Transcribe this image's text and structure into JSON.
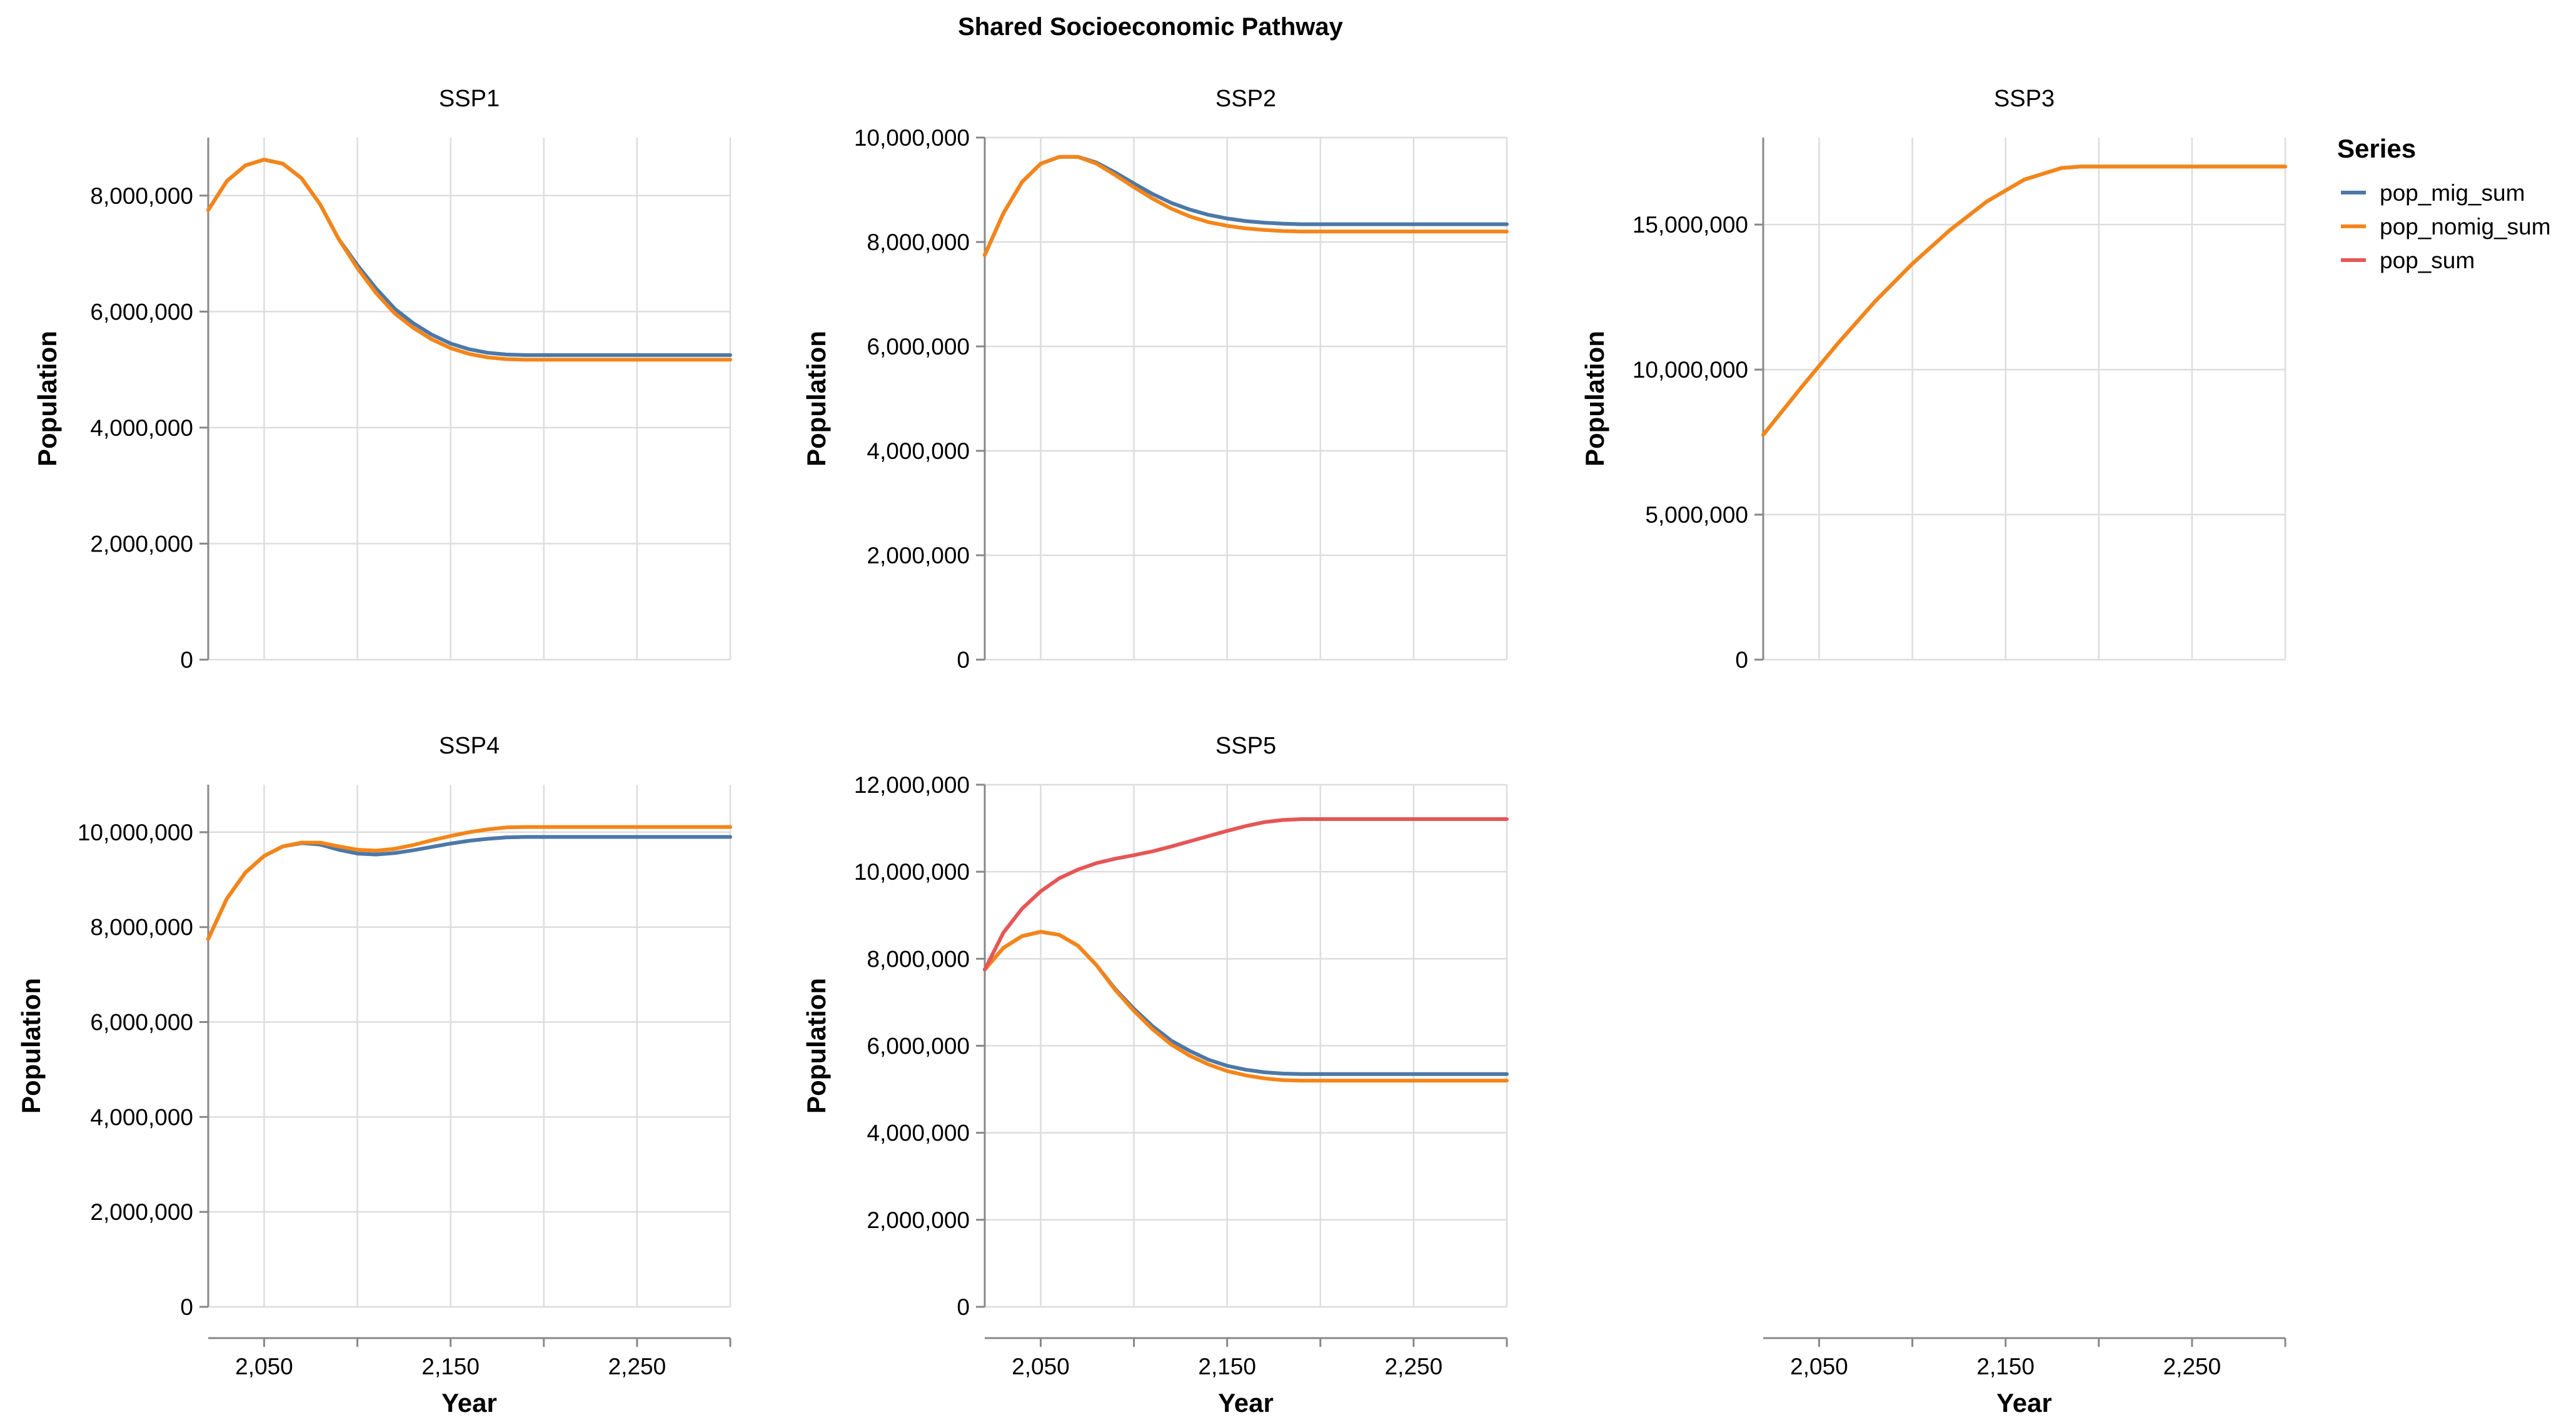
{
  "chart_data": {
    "type": "line",
    "title": "Shared Socioeconomic Pathway",
    "legend": {
      "title": "Series",
      "placement": "right",
      "items": [
        {
          "name": "pop_mig_sum",
          "color": "#4c78a8"
        },
        {
          "name": "pop_nomig_sum",
          "color": "#f58518"
        },
        {
          "name": "pop_sum",
          "color": "#e45756"
        }
      ]
    },
    "xlabel": "Year",
    "ylabel": "Population",
    "xlim": [
      2020,
      2300
    ],
    "xticks": [
      2050,
      2150,
      2250
    ],
    "xtick_labels": [
      "2,050",
      "2,150",
      "2,250"
    ],
    "grid": true,
    "panels": [
      {
        "title": "SSP1",
        "ylim": [
          0,
          9000000
        ],
        "yticks": [
          0,
          2000000,
          4000000,
          6000000,
          8000000
        ],
        "ytick_labels": [
          "0",
          "2,000,000",
          "4,000,000",
          "6,000,000",
          "8,000,000"
        ],
        "series": [
          {
            "name": "pop_mig_sum",
            "x": [
              2020,
              2030,
              2040,
              2050,
              2060,
              2070,
              2080,
              2090,
              2100,
              2110,
              2120,
              2130,
              2140,
              2150,
              2160,
              2170,
              2180,
              2190,
              2200,
              2250,
              2300
            ],
            "values": [
              7750000,
              8250000,
              8520000,
              8620000,
              8550000,
              8300000,
              7850000,
              7250000,
              6800000,
              6400000,
              6050000,
              5800000,
              5600000,
              5450000,
              5350000,
              5290000,
              5260000,
              5250000,
              5250000,
              5250000,
              5250000
            ]
          },
          {
            "name": "pop_nomig_sum",
            "x": [
              2020,
              2030,
              2040,
              2050,
              2060,
              2070,
              2080,
              2090,
              2100,
              2110,
              2120,
              2130,
              2140,
              2150,
              2160,
              2170,
              2180,
              2190,
              2200,
              2250,
              2300
            ],
            "values": [
              7750000,
              8250000,
              8520000,
              8620000,
              8550000,
              8300000,
              7850000,
              7250000,
              6750000,
              6320000,
              5970000,
              5720000,
              5520000,
              5370000,
              5270000,
              5210000,
              5180000,
              5170000,
              5170000,
              5170000,
              5170000
            ]
          }
        ]
      },
      {
        "title": "SSP2",
        "ylim": [
          0,
          10000000
        ],
        "yticks": [
          0,
          2000000,
          4000000,
          6000000,
          8000000,
          10000000
        ],
        "ytick_labels": [
          "0",
          "2,000,000",
          "4,000,000",
          "6,000,000",
          "8,000,000",
          "10,000,000"
        ],
        "series": [
          {
            "name": "pop_mig_sum",
            "x": [
              2020,
              2030,
              2040,
              2050,
              2060,
              2070,
              2080,
              2090,
              2100,
              2110,
              2120,
              2130,
              2140,
              2150,
              2160,
              2170,
              2180,
              2190,
              2200,
              2250,
              2300
            ],
            "values": [
              7750000,
              8550000,
              9150000,
              9500000,
              9630000,
              9630000,
              9520000,
              9330000,
              9120000,
              8920000,
              8750000,
              8620000,
              8520000,
              8450000,
              8400000,
              8370000,
              8350000,
              8340000,
              8340000,
              8340000,
              8340000
            ]
          },
          {
            "name": "pop_nomig_sum",
            "x": [
              2020,
              2030,
              2040,
              2050,
              2060,
              2070,
              2080,
              2090,
              2100,
              2110,
              2120,
              2130,
              2140,
              2150,
              2160,
              2170,
              2180,
              2190,
              2200,
              2250,
              2300
            ],
            "values": [
              7750000,
              8550000,
              9150000,
              9500000,
              9630000,
              9630000,
              9500000,
              9280000,
              9050000,
              8830000,
              8640000,
              8490000,
              8380000,
              8310000,
              8260000,
              8230000,
              8210000,
              8200000,
              8200000,
              8200000,
              8200000
            ]
          }
        ]
      },
      {
        "title": "SSP3",
        "ylim": [
          0,
          18000000
        ],
        "yticks": [
          0,
          5000000,
          10000000,
          15000000
        ],
        "ytick_labels": [
          "0",
          "5,000,000",
          "10,000,000",
          "15,000,000"
        ],
        "series": [
          {
            "name": "pop_mig_sum",
            "x": [
              2020,
              2040,
              2060,
              2080,
              2100,
              2120,
              2140,
              2160,
              2180,
              2190,
              2200,
              2250,
              2300
            ],
            "values": [
              7750000,
              9350000,
              10900000,
              12350000,
              13650000,
              14800000,
              15800000,
              16550000,
              16950000,
              17000000,
              17000000,
              17000000,
              17000000
            ]
          },
          {
            "name": "pop_nomig_sum",
            "x": [
              2020,
              2040,
              2060,
              2080,
              2100,
              2120,
              2140,
              2160,
              2180,
              2190,
              2200,
              2250,
              2300
            ],
            "values": [
              7750000,
              9350000,
              10900000,
              12350000,
              13650000,
              14800000,
              15800000,
              16550000,
              16950000,
              17000000,
              17000000,
              17000000,
              17000000
            ]
          }
        ]
      },
      {
        "title": "SSP4",
        "ylim": [
          0,
          11000000
        ],
        "yticks": [
          0,
          2000000,
          4000000,
          6000000,
          8000000,
          10000000
        ],
        "ytick_labels": [
          "0",
          "2,000,000",
          "4,000,000",
          "6,000,000",
          "8,000,000",
          "10,000,000"
        ],
        "series": [
          {
            "name": "pop_mig_sum",
            "x": [
              2020,
              2030,
              2040,
              2050,
              2060,
              2070,
              2080,
              2090,
              2100,
              2110,
              2120,
              2130,
              2140,
              2150,
              2160,
              2170,
              2180,
              2190,
              2200,
              2250,
              2300
            ],
            "values": [
              7750000,
              8600000,
              9150000,
              9500000,
              9700000,
              9770000,
              9740000,
              9630000,
              9550000,
              9530000,
              9560000,
              9620000,
              9690000,
              9760000,
              9820000,
              9860000,
              9890000,
              9900000,
              9900000,
              9900000,
              9900000
            ]
          },
          {
            "name": "pop_nomig_sum",
            "x": [
              2020,
              2030,
              2040,
              2050,
              2060,
              2070,
              2080,
              2090,
              2100,
              2110,
              2120,
              2130,
              2140,
              2150,
              2160,
              2170,
              2180,
              2190,
              2200,
              2250,
              2300
            ],
            "values": [
              7750000,
              8600000,
              9150000,
              9500000,
              9700000,
              9780000,
              9780000,
              9700000,
              9630000,
              9610000,
              9650000,
              9730000,
              9830000,
              9920000,
              10000000,
              10060000,
              10100000,
              10110000,
              10110000,
              10110000,
              10110000
            ]
          }
        ]
      },
      {
        "title": "SSP5",
        "ylim": [
          0,
          12000000
        ],
        "yticks": [
          0,
          2000000,
          4000000,
          6000000,
          8000000,
          10000000,
          12000000
        ],
        "ytick_labels": [
          "0",
          "2,000,000",
          "4,000,000",
          "6,000,000",
          "8,000,000",
          "10,000,000",
          "12,000,000"
        ],
        "series": [
          {
            "name": "pop_mig_sum",
            "x": [
              2020,
              2030,
              2040,
              2050,
              2060,
              2070,
              2080,
              2090,
              2100,
              2110,
              2120,
              2130,
              2140,
              2150,
              2160,
              2170,
              2180,
              2190,
              2200,
              2250,
              2300
            ],
            "values": [
              7750000,
              8250000,
              8520000,
              8620000,
              8550000,
              8300000,
              7850000,
              7300000,
              6850000,
              6450000,
              6120000,
              5880000,
              5680000,
              5540000,
              5450000,
              5390000,
              5360000,
              5350000,
              5350000,
              5350000,
              5350000
            ]
          },
          {
            "name": "pop_nomig_sum",
            "x": [
              2020,
              2030,
              2040,
              2050,
              2060,
              2070,
              2080,
              2090,
              2100,
              2110,
              2120,
              2130,
              2140,
              2150,
              2160,
              2170,
              2180,
              2190,
              2200,
              2250,
              2300
            ],
            "values": [
              7750000,
              8250000,
              8520000,
              8620000,
              8550000,
              8300000,
              7850000,
              7280000,
              6800000,
              6380000,
              6030000,
              5770000,
              5570000,
              5420000,
              5320000,
              5250000,
              5210000,
              5200000,
              5200000,
              5200000,
              5200000
            ]
          },
          {
            "name": "pop_sum",
            "x": [
              2020,
              2030,
              2040,
              2050,
              2060,
              2070,
              2080,
              2090,
              2100,
              2110,
              2120,
              2130,
              2140,
              2150,
              2160,
              2170,
              2180,
              2190,
              2200,
              2250,
              2300
            ],
            "values": [
              7750000,
              8600000,
              9150000,
              9550000,
              9850000,
              10050000,
              10200000,
              10300000,
              10380000,
              10470000,
              10580000,
              10700000,
              10820000,
              10940000,
              11050000,
              11140000,
              11190000,
              11210000,
              11210000,
              11210000,
              11210000
            ]
          }
        ]
      },
      {
        "title": "",
        "x_axis_only": true
      }
    ]
  }
}
